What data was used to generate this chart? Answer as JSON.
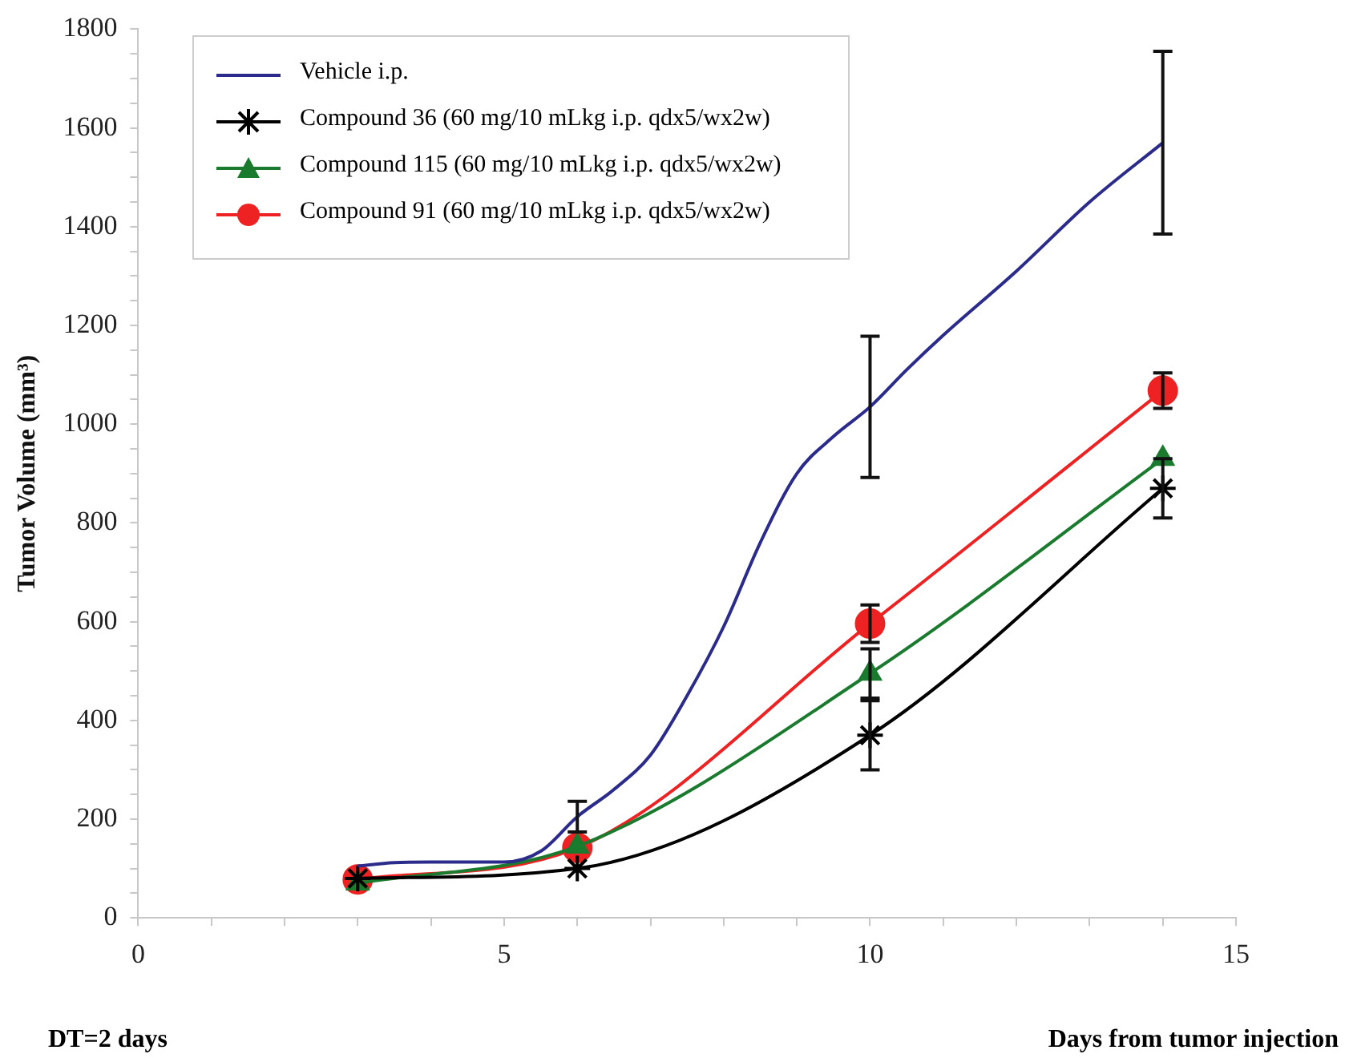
{
  "chart_data": {
    "type": "line",
    "xlabel": "Days from tumor injection",
    "ylabel": "Tumor Volume (mm³)",
    "xlim": [
      0,
      15
    ],
    "xticks": [
      0,
      {
        "value": 1,
        "label": null
      },
      {
        "value": 2,
        "label": null
      },
      {
        "value": 3,
        "label": null
      },
      {
        "value": 4,
        "label": null
      },
      5,
      {
        "value": 6,
        "label": null
      },
      {
        "value": 7,
        "label": null
      },
      {
        "value": 8,
        "label": null
      },
      {
        "value": 9,
        "label": null
      },
      10,
      {
        "value": 11,
        "label": null
      },
      {
        "value": 12,
        "label": null
      },
      {
        "value": 13,
        "label": null
      },
      {
        "value": 14,
        "label": null
      },
      15
    ],
    "ylim": [
      0,
      1800
    ],
    "yticks": [
      0,
      {
        "value": 50,
        "label": null
      },
      {
        "value": 100,
        "label": null
      },
      {
        "value": 150,
        "label": null
      },
      200,
      {
        "value": 250,
        "label": null
      },
      {
        "value": 300,
        "label": null
      },
      {
        "value": 350,
        "label": null
      },
      400,
      {
        "value": 450,
        "label": null
      },
      {
        "value": 500,
        "label": null
      },
      {
        "value": 550,
        "label": null
      },
      600,
      {
        "value": 650,
        "label": null
      },
      {
        "value": 700,
        "label": null
      },
      {
        "value": 750,
        "label": null
      },
      800,
      {
        "value": 850,
        "label": null
      },
      {
        "value": 900,
        "label": null
      },
      {
        "value": 950,
        "label": null
      },
      1000,
      {
        "value": 1050,
        "label": null
      },
      {
        "value": 1100,
        "label": null
      },
      {
        "value": 1150,
        "label": null
      },
      1200,
      {
        "value": 1250,
        "label": null
      },
      {
        "value": 1300,
        "label": null
      },
      {
        "value": 1350,
        "label": null
      },
      1400,
      {
        "value": 1450,
        "label": null
      },
      {
        "value": 1500,
        "label": null
      },
      {
        "value": 1550,
        "label": null
      },
      1600,
      {
        "value": 1650,
        "label": null
      },
      {
        "value": 1700,
        "label": null
      },
      {
        "value": 1750,
        "label": null
      },
      1800
    ],
    "grid": false,
    "legend": "top left",
    "annotations": [
      "DT=2 days"
    ],
    "series": [
      {
        "name": "Vehicle i.p.",
        "color": "#2b2b8c",
        "marker": "none",
        "x": [
          3,
          3.5,
          4,
          4.5,
          5,
          5.5,
          6,
          6.5,
          7,
          7.5,
          8,
          8.5,
          9,
          9.5,
          10,
          10.5,
          11,
          12,
          13,
          14
        ],
        "values": [
          105,
          112,
          113,
          113,
          113,
          135,
          205,
          260,
          330,
          450,
          590,
          760,
          900,
          975,
          1035,
          1110,
          1180,
          1310,
          1450,
          1570
        ],
        "errors": [
          null,
          null,
          null,
          null,
          null,
          null,
          31,
          null,
          null,
          null,
          null,
          null,
          null,
          null,
          143,
          null,
          null,
          null,
          null,
          185
        ]
      },
      {
        "name": "Compound 36 (60 mg/10 mLkg i.p. qdx5/wx2w)",
        "color": "#000000",
        "marker": "cross",
        "x": [
          3,
          6,
          10,
          14
        ],
        "values": [
          80,
          100,
          370,
          870
        ],
        "errors": [
          null,
          null,
          70,
          60
        ]
      },
      {
        "name": "Compound 115 (60 mg/10 mLkg i.p. qdx5/wx2w)",
        "color": "#1a7a2e",
        "marker": "triangle",
        "x": [
          3,
          6,
          10,
          14
        ],
        "values": [
          70,
          145,
          495,
          930
        ],
        "errors": [
          null,
          null,
          50,
          null
        ]
      },
      {
        "name": "Compound 91 (60 mg/10 mLkg i.p. qdx5/wx2w)",
        "color": "#ee2222",
        "marker": "circle",
        "x": [
          3,
          6,
          10,
          14
        ],
        "values": [
          78,
          142,
          596,
          1068
        ],
        "errors": [
          null,
          null,
          38,
          36
        ]
      }
    ]
  }
}
